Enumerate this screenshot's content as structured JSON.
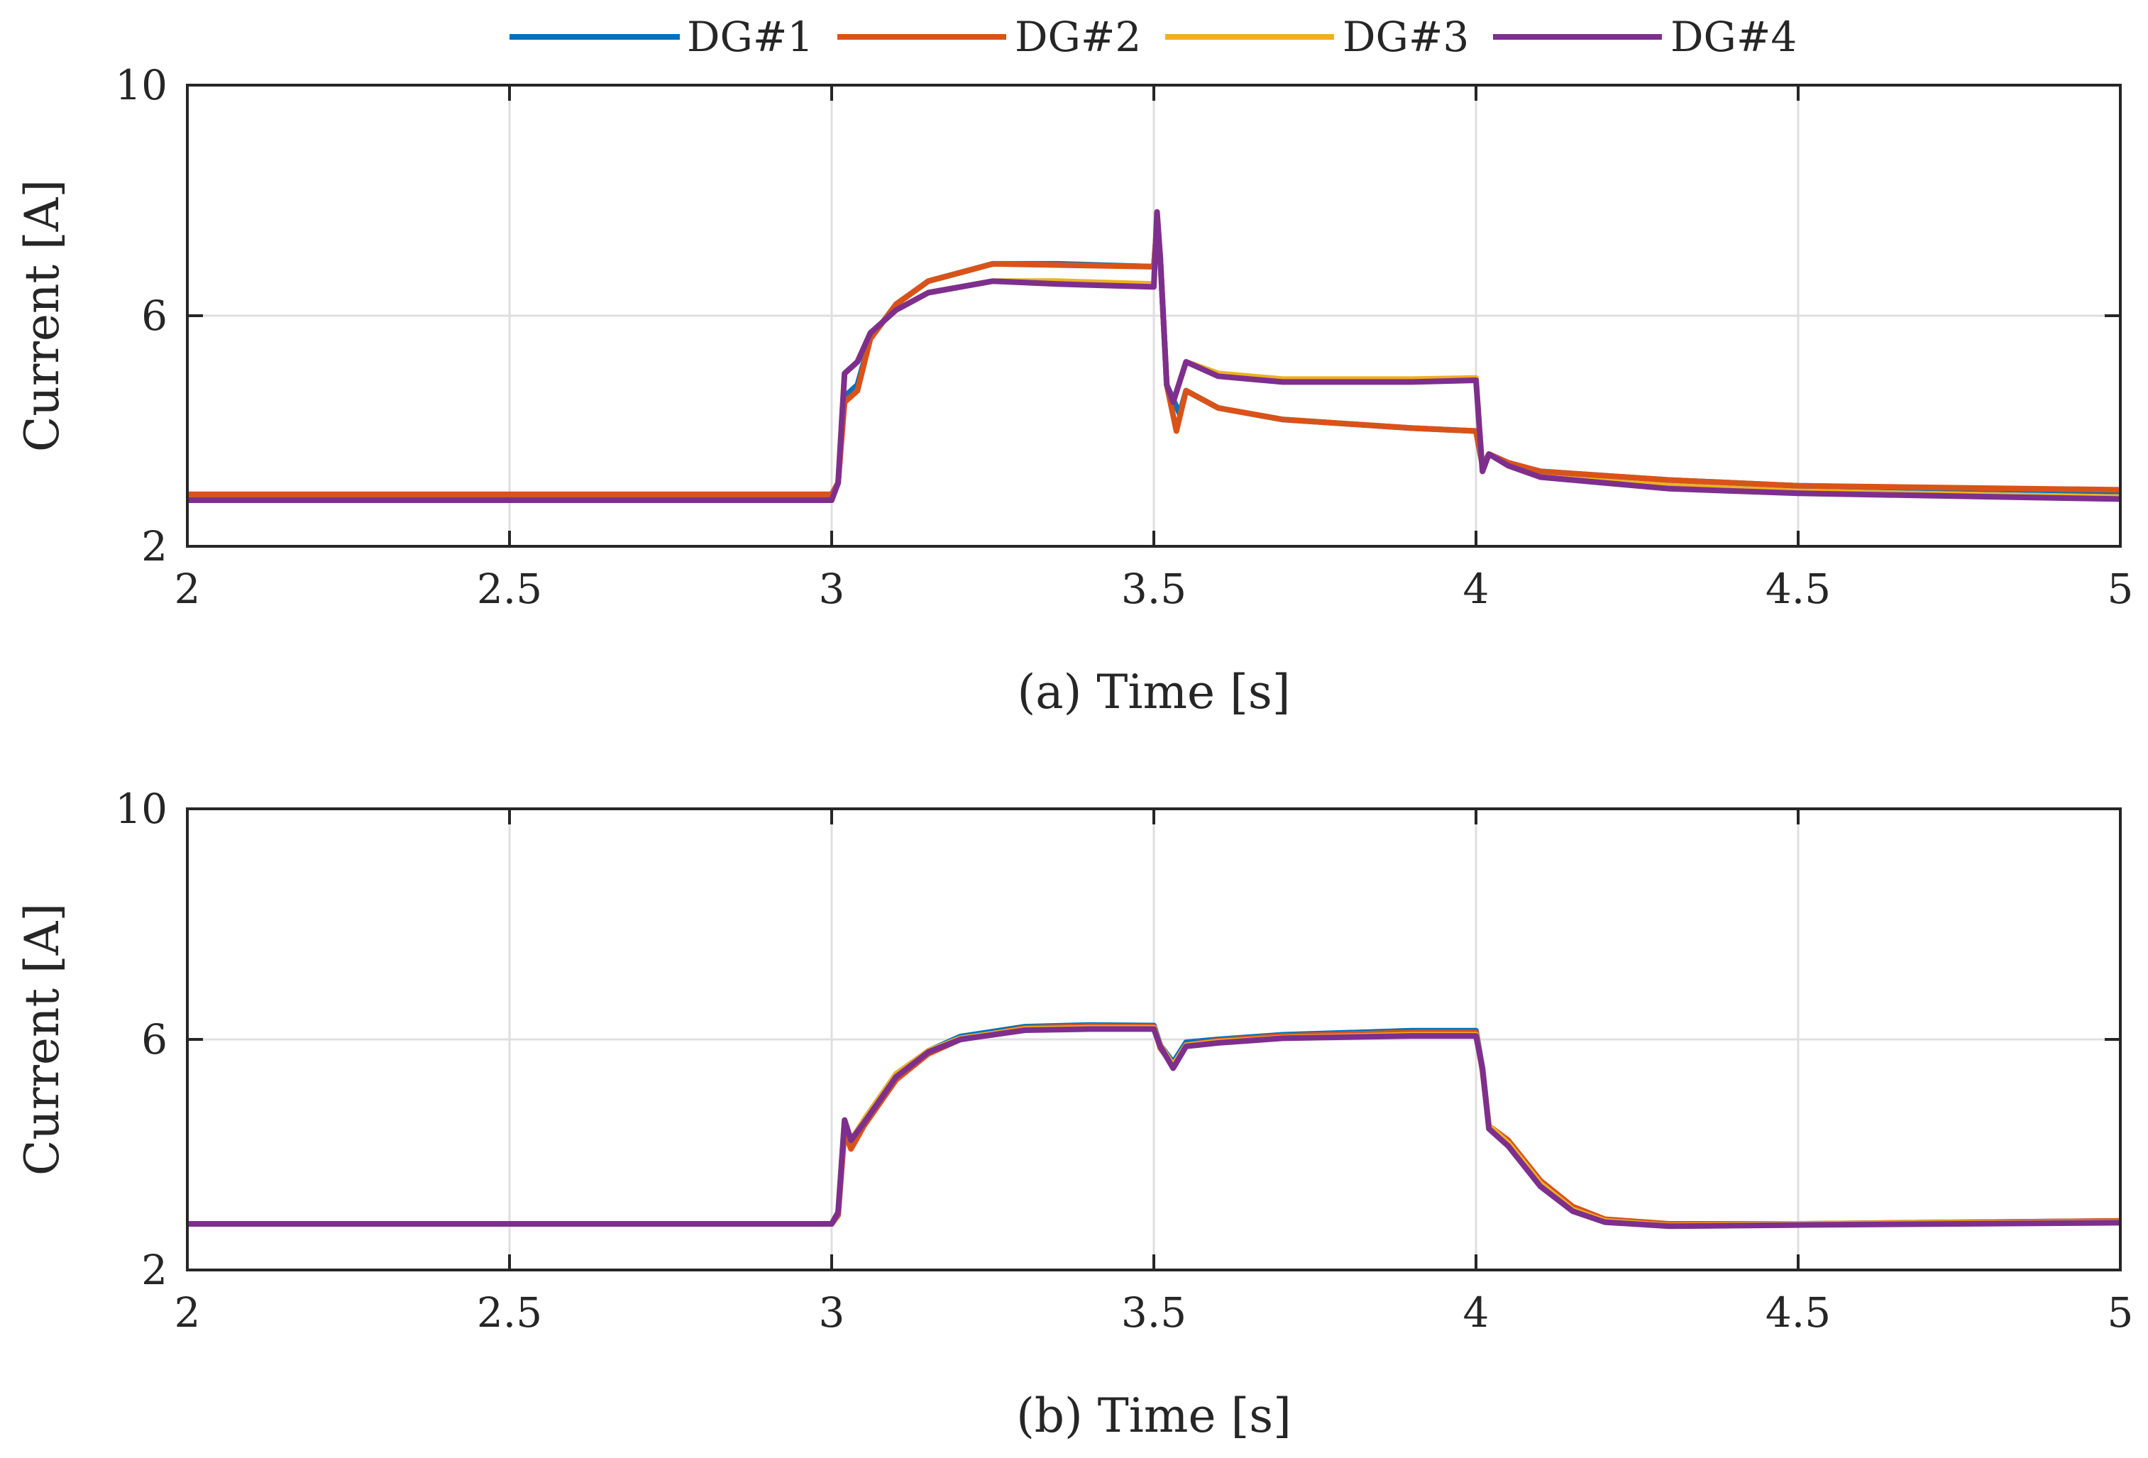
{
  "chart_data": [
    {
      "type": "line",
      "xlabel": "(a) Time [s]",
      "ylabel": "Current [A]",
      "xlim": [
        2,
        5
      ],
      "ylim": [
        2,
        10
      ],
      "xticks": [
        2,
        2.5,
        3,
        3.5,
        4,
        4.5,
        5
      ],
      "yticks": [
        2,
        6,
        10
      ],
      "xtick_labels": [
        "2",
        "2.5",
        "3",
        "3.5",
        "4",
        "4.5",
        "5"
      ],
      "ytick_labels": [
        "2",
        "6",
        "10"
      ],
      "grid": true,
      "series": [
        {
          "name": "DG#1",
          "color": "#0072BD",
          "points": [
            [
              2,
              2.9
            ],
            [
              3.0,
              2.9
            ],
            [
              3.01,
              3.1
            ],
            [
              3.02,
              4.6
            ],
            [
              3.04,
              4.8
            ],
            [
              3.06,
              5.6
            ],
            [
              3.1,
              6.2
            ],
            [
              3.15,
              6.6
            ],
            [
              3.25,
              6.9
            ],
            [
              3.35,
              6.9
            ],
            [
              3.5,
              6.85
            ],
            [
              3.505,
              7.6
            ],
            [
              3.51,
              7.0
            ],
            [
              3.52,
              4.8
            ],
            [
              3.54,
              4.3
            ],
            [
              3.55,
              4.7
            ],
            [
              3.6,
              4.4
            ],
            [
              3.7,
              4.2
            ],
            [
              3.9,
              4.05
            ],
            [
              4.0,
              4.0
            ],
            [
              4.01,
              3.4
            ],
            [
              4.02,
              3.6
            ],
            [
              4.05,
              3.45
            ],
            [
              4.1,
              3.3
            ],
            [
              4.3,
              3.15
            ],
            [
              4.5,
              3.05
            ],
            [
              5.0,
              2.95
            ]
          ]
        },
        {
          "name": "DG#2",
          "color": "#D95319",
          "points": [
            [
              2,
              2.9
            ],
            [
              3.0,
              2.9
            ],
            [
              3.01,
              3.1
            ],
            [
              3.02,
              4.5
            ],
            [
              3.04,
              4.7
            ],
            [
              3.06,
              5.6
            ],
            [
              3.1,
              6.2
            ],
            [
              3.15,
              6.6
            ],
            [
              3.25,
              6.9
            ],
            [
              3.35,
              6.88
            ],
            [
              3.5,
              6.85
            ],
            [
              3.505,
              7.6
            ],
            [
              3.51,
              7.0
            ],
            [
              3.52,
              4.8
            ],
            [
              3.535,
              4.0
            ],
            [
              3.55,
              4.7
            ],
            [
              3.6,
              4.4
            ],
            [
              3.7,
              4.2
            ],
            [
              3.9,
              4.05
            ],
            [
              4.0,
              4.0
            ],
            [
              4.01,
              3.4
            ],
            [
              4.02,
              3.6
            ],
            [
              4.05,
              3.45
            ],
            [
              4.1,
              3.3
            ],
            [
              4.3,
              3.15
            ],
            [
              4.5,
              3.05
            ],
            [
              5.0,
              2.98
            ]
          ]
        },
        {
          "name": "DG#3",
          "color": "#EDB120",
          "points": [
            [
              2,
              2.8
            ],
            [
              3.0,
              2.8
            ],
            [
              3.01,
              3.1
            ],
            [
              3.02,
              5.0
            ],
            [
              3.04,
              5.2
            ],
            [
              3.06,
              5.7
            ],
            [
              3.1,
              6.1
            ],
            [
              3.15,
              6.4
            ],
            [
              3.25,
              6.6
            ],
            [
              3.35,
              6.6
            ],
            [
              3.5,
              6.55
            ],
            [
              3.505,
              7.8
            ],
            [
              3.51,
              7.0
            ],
            [
              3.52,
              4.8
            ],
            [
              3.53,
              4.5
            ],
            [
              3.55,
              5.2
            ],
            [
              3.6,
              5.0
            ],
            [
              3.7,
              4.9
            ],
            [
              3.9,
              4.9
            ],
            [
              4.0,
              4.92
            ],
            [
              4.01,
              3.3
            ],
            [
              4.02,
              3.6
            ],
            [
              4.05,
              3.4
            ],
            [
              4.1,
              3.2
            ],
            [
              4.3,
              3.05
            ],
            [
              4.5,
              2.95
            ],
            [
              5.0,
              2.85
            ]
          ]
        },
        {
          "name": "DG#4",
          "color": "#7E2F8E",
          "points": [
            [
              2,
              2.8
            ],
            [
              3.0,
              2.8
            ],
            [
              3.01,
              3.1
            ],
            [
              3.02,
              5.0
            ],
            [
              3.04,
              5.2
            ],
            [
              3.06,
              5.7
            ],
            [
              3.1,
              6.1
            ],
            [
              3.15,
              6.4
            ],
            [
              3.25,
              6.6
            ],
            [
              3.35,
              6.55
            ],
            [
              3.5,
              6.5
            ],
            [
              3.505,
              7.8
            ],
            [
              3.51,
              7.0
            ],
            [
              3.52,
              4.8
            ],
            [
              3.53,
              4.5
            ],
            [
              3.55,
              5.2
            ],
            [
              3.6,
              4.95
            ],
            [
              3.7,
              4.85
            ],
            [
              3.9,
              4.85
            ],
            [
              4.0,
              4.88
            ],
            [
              4.01,
              3.3
            ],
            [
              4.02,
              3.6
            ],
            [
              4.05,
              3.4
            ],
            [
              4.1,
              3.2
            ],
            [
              4.3,
              3.0
            ],
            [
              4.5,
              2.92
            ],
            [
              5.0,
              2.82
            ]
          ]
        }
      ]
    },
    {
      "type": "line",
      "xlabel": "(b) Time [s]",
      "ylabel": "Current [A]",
      "xlim": [
        2,
        5
      ],
      "ylim": [
        2,
        10
      ],
      "xticks": [
        2,
        2.5,
        3,
        3.5,
        4,
        4.5,
        5
      ],
      "yticks": [
        2,
        6,
        10
      ],
      "xtick_labels": [
        "2",
        "2.5",
        "3",
        "3.5",
        "4",
        "4.5",
        "5"
      ],
      "ytick_labels": [
        "2",
        "6",
        "10"
      ],
      "grid": true,
      "series": [
        {
          "name": "DG#1",
          "color": "#0072BD",
          "points": [
            [
              2,
              2.8
            ],
            [
              3.0,
              2.8
            ],
            [
              3.01,
              3.0
            ],
            [
              3.02,
              4.5
            ],
            [
              3.03,
              4.2
            ],
            [
              3.05,
              4.6
            ],
            [
              3.1,
              5.4
            ],
            [
              3.15,
              5.8
            ],
            [
              3.2,
              6.05
            ],
            [
              3.3,
              6.22
            ],
            [
              3.4,
              6.25
            ],
            [
              3.5,
              6.24
            ],
            [
              3.51,
              5.9
            ],
            [
              3.53,
              5.6
            ],
            [
              3.55,
              5.95
            ],
            [
              3.6,
              6.0
            ],
            [
              3.7,
              6.08
            ],
            [
              3.9,
              6.15
            ],
            [
              4.0,
              6.15
            ],
            [
              4.01,
              5.5
            ],
            [
              4.02,
              4.5
            ],
            [
              4.05,
              4.2
            ],
            [
              4.1,
              3.5
            ],
            [
              4.15,
              3.05
            ],
            [
              4.2,
              2.85
            ],
            [
              4.3,
              2.78
            ],
            [
              4.5,
              2.8
            ],
            [
              5.0,
              2.85
            ]
          ]
        },
        {
          "name": "DG#2",
          "color": "#D95319",
          "points": [
            [
              2,
              2.8
            ],
            [
              3.0,
              2.8
            ],
            [
              3.01,
              2.95
            ],
            [
              3.02,
              4.4
            ],
            [
              3.03,
              4.1
            ],
            [
              3.05,
              4.5
            ],
            [
              3.1,
              5.3
            ],
            [
              3.15,
              5.75
            ],
            [
              3.2,
              6.0
            ],
            [
              3.3,
              6.2
            ],
            [
              3.4,
              6.23
            ],
            [
              3.5,
              6.22
            ],
            [
              3.51,
              5.85
            ],
            [
              3.53,
              5.55
            ],
            [
              3.55,
              5.9
            ],
            [
              3.6,
              5.98
            ],
            [
              3.7,
              6.06
            ],
            [
              3.9,
              6.12
            ],
            [
              4.0,
              6.12
            ],
            [
              4.01,
              5.45
            ],
            [
              4.02,
              4.5
            ],
            [
              4.05,
              4.25
            ],
            [
              4.1,
              3.55
            ],
            [
              4.15,
              3.1
            ],
            [
              4.2,
              2.88
            ],
            [
              4.3,
              2.8
            ],
            [
              4.5,
              2.8
            ],
            [
              5.0,
              2.85
            ]
          ]
        },
        {
          "name": "DG#3",
          "color": "#EDB120",
          "points": [
            [
              2,
              2.8
            ],
            [
              3.0,
              2.8
            ],
            [
              3.01,
              3.0
            ],
            [
              3.02,
              4.6
            ],
            [
              3.03,
              4.25
            ],
            [
              3.05,
              4.6
            ],
            [
              3.1,
              5.4
            ],
            [
              3.15,
              5.8
            ],
            [
              3.2,
              6.02
            ],
            [
              3.3,
              6.18
            ],
            [
              3.4,
              6.2
            ],
            [
              3.5,
              6.2
            ],
            [
              3.51,
              5.9
            ],
            [
              3.53,
              5.55
            ],
            [
              3.55,
              5.9
            ],
            [
              3.6,
              5.96
            ],
            [
              3.7,
              6.03
            ],
            [
              3.9,
              6.08
            ],
            [
              4.0,
              6.08
            ],
            [
              4.01,
              5.5
            ],
            [
              4.02,
              4.5
            ],
            [
              4.05,
              4.2
            ],
            [
              4.1,
              3.5
            ],
            [
              4.15,
              3.05
            ],
            [
              4.2,
              2.85
            ],
            [
              4.3,
              2.77
            ],
            [
              4.5,
              2.8
            ],
            [
              5.0,
              2.83
            ]
          ]
        },
        {
          "name": "DG#4",
          "color": "#7E2F8E",
          "points": [
            [
              2,
              2.8
            ],
            [
              3.0,
              2.8
            ],
            [
              3.01,
              3.0
            ],
            [
              3.02,
              4.6
            ],
            [
              3.03,
              4.25
            ],
            [
              3.05,
              4.55
            ],
            [
              3.1,
              5.35
            ],
            [
              3.15,
              5.78
            ],
            [
              3.2,
              6.0
            ],
            [
              3.3,
              6.16
            ],
            [
              3.4,
              6.18
            ],
            [
              3.5,
              6.18
            ],
            [
              3.51,
              5.88
            ],
            [
              3.53,
              5.5
            ],
            [
              3.55,
              5.88
            ],
            [
              3.6,
              5.94
            ],
            [
              3.7,
              6.02
            ],
            [
              3.9,
              6.06
            ],
            [
              4.0,
              6.06
            ],
            [
              4.01,
              5.5
            ],
            [
              4.02,
              4.45
            ],
            [
              4.05,
              4.15
            ],
            [
              4.1,
              3.45
            ],
            [
              4.15,
              3.02
            ],
            [
              4.2,
              2.83
            ],
            [
              4.3,
              2.76
            ],
            [
              4.5,
              2.78
            ],
            [
              5.0,
              2.82
            ]
          ]
        }
      ]
    }
  ],
  "legend": {
    "placement": "top-center",
    "entries": [
      {
        "label": "DG#1",
        "color": "#0072BD"
      },
      {
        "label": "DG#2",
        "color": "#D95319"
      },
      {
        "label": "DG#3",
        "color": "#EDB120"
      },
      {
        "label": "DG#4",
        "color": "#7E2F8E"
      }
    ]
  }
}
